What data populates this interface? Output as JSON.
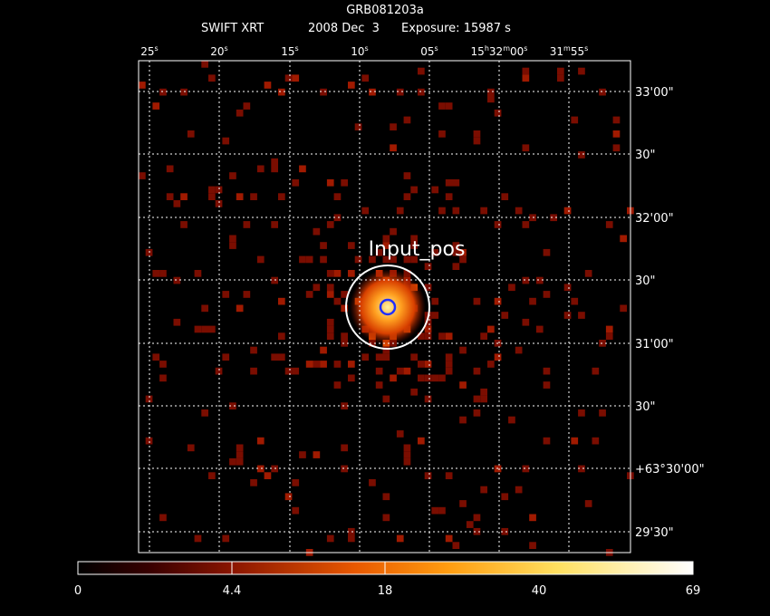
{
  "header": {
    "target": "GRB081203a",
    "instrument": "SWIFT XRT",
    "date": "2008 Dec  3",
    "exposure": "Exposure: 15987 s"
  },
  "axes": {
    "top_labels": [
      [
        "25",
        "s"
      ],
      [
        "20",
        "s"
      ],
      [
        "15",
        "s"
      ],
      [
        "10",
        "s"
      ],
      [
        "05",
        "s"
      ],
      [
        "15",
        "h",
        "32",
        "m",
        "00",
        "s"
      ],
      [
        "31",
        "m",
        "55",
        "s"
      ]
    ],
    "right_labels": [
      "33'00\"",
      "30\"",
      "32'00\"",
      "30\"",
      "31'00\"",
      "30\"",
      "+63°30'00\"",
      "29'30\""
    ]
  },
  "region_label": "Input_pos",
  "colorbar": {
    "labels": [
      "0",
      "4.4",
      "18",
      "40",
      "69"
    ]
  }
}
